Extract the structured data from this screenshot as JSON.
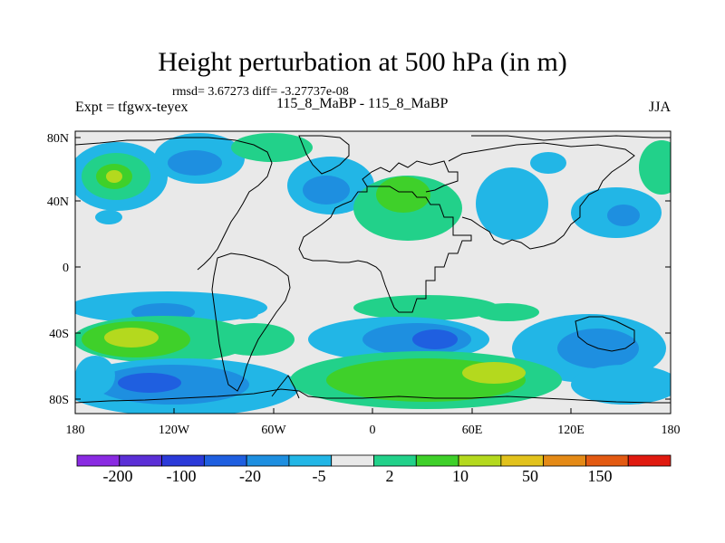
{
  "title": "Height perturbation at 500 hPa (in m)",
  "stats": "rmsd= 3.67273 diff= -3.27737e-08",
  "expt": "Expt = tfgwx-teyex",
  "case": "115_8_MaBP - 115_8_MaBP",
  "season": "JJA",
  "axes": {
    "y_ticks": [
      "80N",
      "40N",
      "0",
      "40S",
      "80S"
    ],
    "x_ticks": [
      "180",
      "120W",
      "60W",
      "0",
      "60E",
      "120E",
      "180"
    ]
  },
  "colorbar": {
    "colors": [
      "#8a2be2",
      "#5b2fd6",
      "#2b3ad9",
      "#1f5fe0",
      "#1e8fe0",
      "#22b6e6",
      "#e9e9e9",
      "#22d18a",
      "#3fd02a",
      "#b4d91e",
      "#e2c21c",
      "#e48a16",
      "#e35a12",
      "#e01a10"
    ],
    "labels": [
      "-200",
      "-100",
      "-20",
      "-5",
      "2",
      "10",
      "50",
      "150"
    ]
  },
  "map_colors": {
    "background": "#e9e9e9",
    "cyan": "#22b6e6",
    "blue": "#1e8fe0",
    "dark_blue": "#1f5fe0",
    "teal": "#22d18a",
    "green": "#3fd02a",
    "yellow_green": "#b4d91e"
  }
}
